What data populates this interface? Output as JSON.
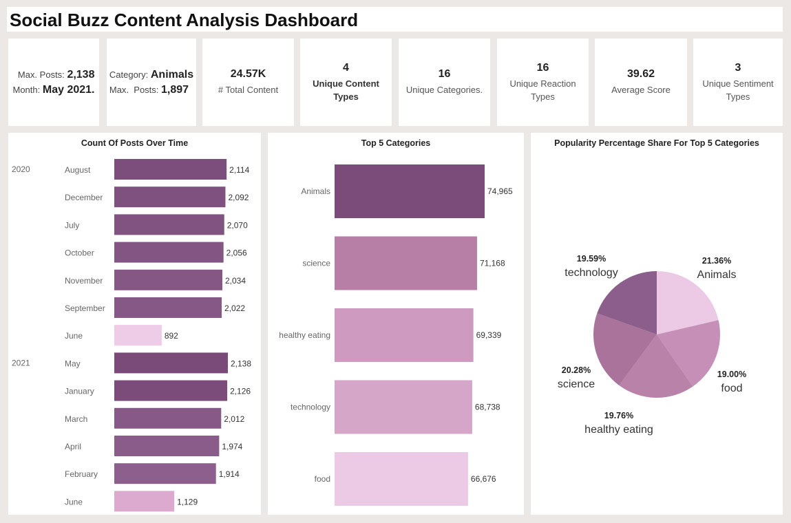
{
  "title": "Social Buzz Content Analysis Dashboard",
  "kpis": {
    "max_posts": {
      "label": "Max. Posts:",
      "value": "2,138",
      "month_label": "Month:",
      "month_value": "May 2021."
    },
    "category": {
      "label": "Category:",
      "value": "Animals",
      "posts_label": "Max.  Posts:",
      "posts_value": "1,897"
    },
    "total_content": {
      "value": "24.57K",
      "label": "# Total Content"
    },
    "content_types": {
      "value": "4",
      "label1": "Unique Content",
      "label2": "Types"
    },
    "categories": {
      "value": "16",
      "label": "Unique Categories."
    },
    "reaction_types": {
      "value": "16",
      "label1": "Unique Reaction",
      "label2": "Types"
    },
    "average_score": {
      "value": "39.62",
      "label": "Average Score"
    },
    "sentiment_types": {
      "value": "3",
      "label1": "Unique Sentiment",
      "label2": "Types"
    }
  },
  "colors": {
    "dark": "#7b4c7b",
    "mid": "#8a5a8a",
    "light": "#eccae5",
    "pink": "#dba9cf"
  },
  "chart_data": [
    {
      "type": "bar",
      "orientation": "horizontal",
      "title": "Count Of Posts Over Time",
      "groups": [
        {
          "year": "2020",
          "items": [
            {
              "month": "August",
              "value": 2114,
              "label": "2,114",
              "color": "#7c4e7c"
            },
            {
              "month": "December",
              "value": 2092,
              "label": "2,092",
              "color": "#7f517f"
            },
            {
              "month": "July",
              "value": 2070,
              "label": "2,070",
              "color": "#815381"
            },
            {
              "month": "October",
              "value": 2056,
              "label": "2,056",
              "color": "#835583"
            },
            {
              "month": "November",
              "value": 2034,
              "label": "2,034",
              "color": "#855785"
            },
            {
              "month": "September",
              "value": 2022,
              "label": "2,022",
              "color": "#865886"
            },
            {
              "month": "June",
              "value": 892,
              "label": "892",
              "color": "#eecbe6"
            }
          ]
        },
        {
          "year": "2021",
          "items": [
            {
              "month": "May",
              "value": 2138,
              "label": "2,138",
              "color": "#7a4b78"
            },
            {
              "month": "January",
              "value": 2126,
              "label": "2,126",
              "color": "#7b4c79"
            },
            {
              "month": "March",
              "value": 2012,
              "label": "2,012",
              "color": "#875987"
            },
            {
              "month": "April",
              "value": 1974,
              "label": "1,974",
              "color": "#8a5c8a"
            },
            {
              "month": "February",
              "value": 1914,
              "label": "1,914",
              "color": "#8d5f8d"
            },
            {
              "month": "June",
              "value": 1129,
              "label": "1,129",
              "color": "#dcaace"
            }
          ]
        }
      ]
    },
    {
      "type": "bar",
      "orientation": "horizontal",
      "title": "Top 5 Categories",
      "categories": [
        "Animals",
        "science",
        "healthy eating",
        "technology",
        "food"
      ],
      "values": [
        74965,
        71168,
        69339,
        68738,
        66676
      ],
      "labels": [
        "74,965",
        "71,168",
        "69,339",
        "68,738",
        "66,676"
      ],
      "colors": [
        "#7b4c79",
        "#b77ea6",
        "#cf9abf",
        "#d6a6c9",
        "#eccae5"
      ]
    },
    {
      "type": "pie",
      "title": "Popularity Percentage Share For Top 5 Categories",
      "slices": [
        {
          "name": "Animals",
          "value": 21.36,
          "label": "21.36%",
          "color": "#eccae5"
        },
        {
          "name": "food",
          "value": 19.0,
          "label": "19.00%",
          "color": "#c58fb8"
        },
        {
          "name": "healthy eating",
          "value": 19.76,
          "label": "19.76%",
          "color": "#b983a9"
        },
        {
          "name": "science",
          "value": 20.28,
          "label": "20.28%",
          "color": "#a9739c"
        },
        {
          "name": "technology",
          "value": 19.59,
          "label": "19.59%",
          "color": "#8b5e8b"
        }
      ]
    }
  ]
}
